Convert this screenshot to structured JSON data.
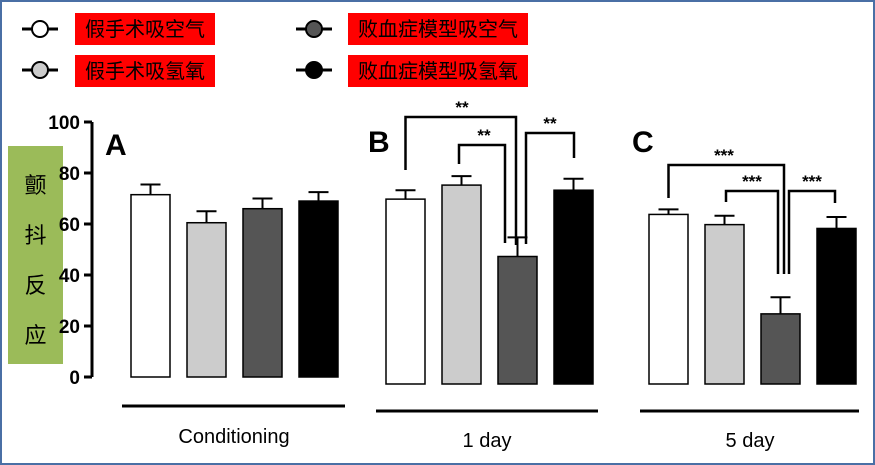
{
  "legend": [
    {
      "label": "假手术吸空气",
      "fill": "#ffffff"
    },
    {
      "label": "假手术吸氢氧",
      "fill": "#cccccc"
    },
    {
      "label": "败血症模型吸空气",
      "fill": "#555555"
    },
    {
      "label": "败血症模型吸氢氧",
      "fill": "#000000"
    }
  ],
  "colors": {
    "frame": "#4a6fa5",
    "legend_bg": "#ff0000",
    "ylabel_bg": "#9bbb59"
  },
  "ylabel": [
    "颤",
    "抖",
    "反",
    "应"
  ],
  "chart_data": {
    "type": "bar",
    "series_names": [
      "假手术吸空气",
      "假手术吸氢氧",
      "败血症模型吸空气",
      "败血症模型吸氢氧"
    ],
    "ylim": [
      0,
      100
    ],
    "yticks": [
      "0",
      "20",
      "40",
      "60",
      "80",
      "100"
    ],
    "panels": [
      {
        "letter": "A",
        "xlabel": "Conditioning",
        "values": [
          71.5,
          60.5,
          66,
          69
        ],
        "errors": [
          4,
          4.5,
          4,
          3.5
        ],
        "significance": []
      },
      {
        "letter": "B",
        "xlabel": "1 day",
        "values": [
          72.5,
          78,
          50,
          76
        ],
        "errors": [
          3.5,
          3.5,
          7.5,
          4.5
        ],
        "significance": [
          {
            "from": 0,
            "to": 2,
            "label": "**"
          },
          {
            "from": 1,
            "to": 2,
            "label": "**"
          },
          {
            "from": 2,
            "to": 3,
            "label": "**"
          }
        ]
      },
      {
        "letter": "C",
        "xlabel": "5 day",
        "values": [
          66.5,
          62.5,
          27.5,
          61
        ],
        "errors": [
          2,
          3.5,
          6.5,
          4.5
        ],
        "significance": [
          {
            "from": 0,
            "to": 2,
            "label": "***"
          },
          {
            "from": 1,
            "to": 2,
            "label": "***"
          },
          {
            "from": 2,
            "to": 3,
            "label": "***"
          }
        ]
      }
    ]
  }
}
